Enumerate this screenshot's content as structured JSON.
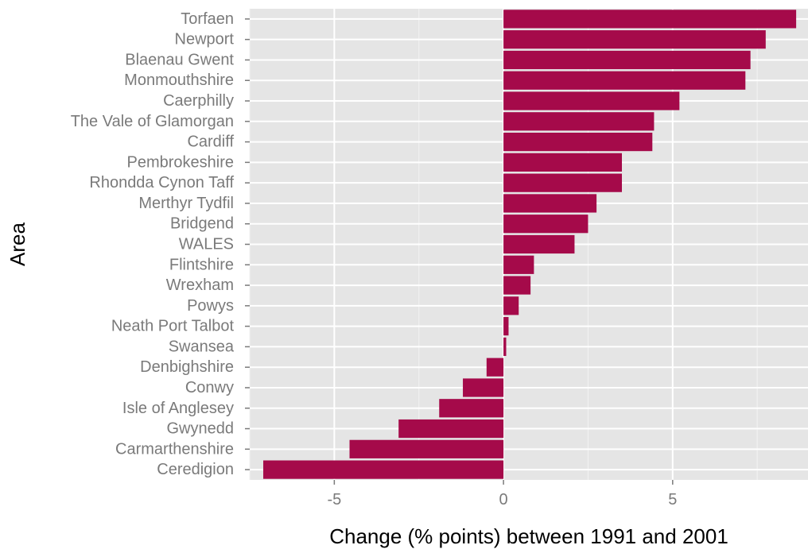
{
  "chart_data": {
    "type": "bar",
    "orientation": "horizontal",
    "xlabel": "Change (% points) between 1991 and 2001",
    "ylabel": "Area",
    "xlim": [
      -7.5,
      9.0
    ],
    "x_ticks": [
      -5,
      0,
      5
    ],
    "x_tick_labels": [
      "-5",
      "0",
      "5"
    ],
    "grid": true,
    "categories": [
      "Torfaen",
      "Newport",
      "Blaenau Gwent",
      "Monmouthshire",
      "Caerphilly",
      "The Vale of Glamorgan",
      "Cardiff",
      "Pembrokeshire",
      "Rhondda Cynon Taff",
      "Merthyr Tydfil",
      "Bridgend",
      "WALES",
      "Flintshire",
      "Wrexham",
      "Powys",
      "Neath Port Talbot",
      "Swansea",
      "Denbighshire",
      "Conwy",
      "Isle of Anglesey",
      "Gwynedd",
      "Carmarthenshire",
      "Ceredigion"
    ],
    "values": [
      8.65,
      7.75,
      7.3,
      7.15,
      5.2,
      4.45,
      4.4,
      3.5,
      3.5,
      2.75,
      2.5,
      2.1,
      0.9,
      0.8,
      0.45,
      0.15,
      0.08,
      -0.5,
      -1.2,
      -1.9,
      -3.1,
      -4.55,
      -7.1
    ],
    "colors": {
      "bar": "#a50a4a",
      "panel": "#e5e5e5",
      "grid_major": "#ffffff",
      "grid_minor": "#f2f2f2",
      "tick_text": "#7a7a7a",
      "title_text": "#000000"
    }
  }
}
